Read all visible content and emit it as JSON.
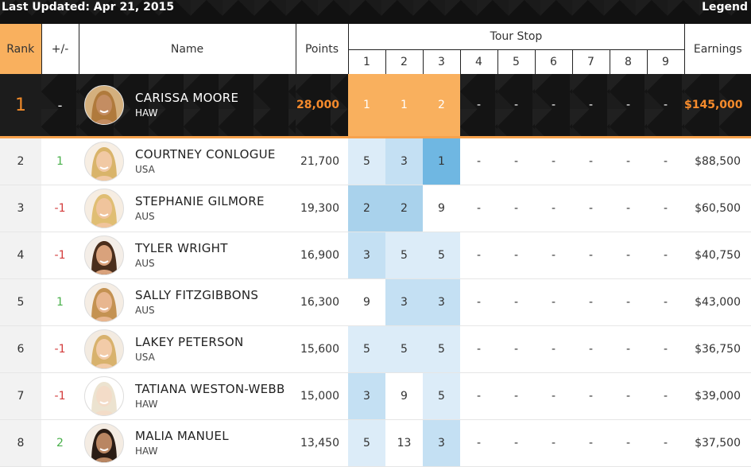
{
  "last_updated": "Last Updated: Apr 21, 2015",
  "legend_label": "Legend",
  "headers": {
    "rank": "Rank",
    "change": "+/-",
    "name": "Name",
    "points": "Points",
    "tour_stop": "Tour Stop",
    "stops": [
      "1",
      "2",
      "3",
      "4",
      "5",
      "6",
      "7",
      "8",
      "9"
    ],
    "earnings": "Earnings"
  },
  "rows": [
    {
      "rank": "1",
      "change": "-",
      "name": "CARISSA MOORE",
      "country": "HAW",
      "points": "28,000",
      "stops": [
        "1",
        "1",
        "2",
        "-",
        "-",
        "-",
        "-",
        "-",
        "-"
      ],
      "earnings": "$145,000"
    },
    {
      "rank": "2",
      "change": "1",
      "name": "COURTNEY CONLOGUE",
      "country": "USA",
      "points": "21,700",
      "stops": [
        "5",
        "3",
        "1",
        "-",
        "-",
        "-",
        "-",
        "-",
        "-"
      ],
      "earnings": "$88,500"
    },
    {
      "rank": "3",
      "change": "-1",
      "name": "STEPHANIE GILMORE",
      "country": "AUS",
      "points": "19,300",
      "stops": [
        "2",
        "2",
        "9",
        "-",
        "-",
        "-",
        "-",
        "-",
        "-"
      ],
      "earnings": "$60,500"
    },
    {
      "rank": "4",
      "change": "-1",
      "name": "TYLER WRIGHT",
      "country": "AUS",
      "points": "16,900",
      "stops": [
        "3",
        "5",
        "5",
        "-",
        "-",
        "-",
        "-",
        "-",
        "-"
      ],
      "earnings": "$40,750"
    },
    {
      "rank": "5",
      "change": "1",
      "name": "SALLY FITZGIBBONS",
      "country": "AUS",
      "points": "16,300",
      "stops": [
        "9",
        "3",
        "3",
        "-",
        "-",
        "-",
        "-",
        "-",
        "-"
      ],
      "earnings": "$43,000"
    },
    {
      "rank": "6",
      "change": "-1",
      "name": "LAKEY PETERSON",
      "country": "USA",
      "points": "15,600",
      "stops": [
        "5",
        "5",
        "5",
        "-",
        "-",
        "-",
        "-",
        "-",
        "-"
      ],
      "earnings": "$36,750"
    },
    {
      "rank": "7",
      "change": "-1",
      "name": "TATIANA WESTON-WEBB",
      "country": "HAW",
      "points": "15,000",
      "stops": [
        "3",
        "9",
        "5",
        "-",
        "-",
        "-",
        "-",
        "-",
        "-"
      ],
      "earnings": "$39,000"
    },
    {
      "rank": "8",
      "change": "2",
      "name": "MALIA MANUEL",
      "country": "HAW",
      "points": "13,450",
      "stops": [
        "5",
        "13",
        "3",
        "-",
        "-",
        "-",
        "-",
        "-",
        "-"
      ],
      "earnings": "$37,500"
    }
  ],
  "colors": {
    "accent_orange": "#f9b05e",
    "leader_text_orange": "#f68b2c",
    "up_green": "#48b04a",
    "down_red": "#d33b3b",
    "stop_blue_best": "#6fb7e2"
  }
}
